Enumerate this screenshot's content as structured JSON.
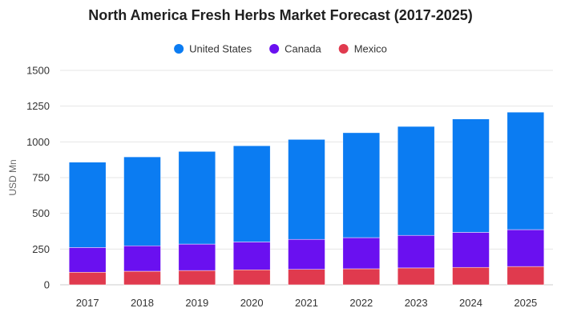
{
  "chart_data": {
    "type": "bar",
    "stacked": true,
    "title": "North America Fresh Herbs Market Forecast (2017-2025)",
    "xlabel": "",
    "ylabel": "USD Mn",
    "ylim": [
      0,
      1500
    ],
    "yticks": [
      0,
      250,
      500,
      750,
      1000,
      1250,
      1500
    ],
    "grid": true,
    "legend_position": "top-center",
    "categories": [
      "2017",
      "2018",
      "2019",
      "2020",
      "2021",
      "2022",
      "2023",
      "2024",
      "2025"
    ],
    "series": [
      {
        "name": "Mexico",
        "color": "#e03a4e",
        "values": [
          88,
          95,
          100,
          105,
          108,
          112,
          118,
          122,
          128
        ]
      },
      {
        "name": "Canada",
        "color": "#6a10f0",
        "values": [
          173,
          178,
          185,
          195,
          210,
          218,
          228,
          245,
          258
        ]
      },
      {
        "name": "United States",
        "color": "#0b7cf2",
        "values": [
          597,
          622,
          648,
          673,
          699,
          734,
          762,
          793,
          822
        ]
      }
    ],
    "legend_order": [
      "United States",
      "Canada",
      "Mexico"
    ]
  }
}
